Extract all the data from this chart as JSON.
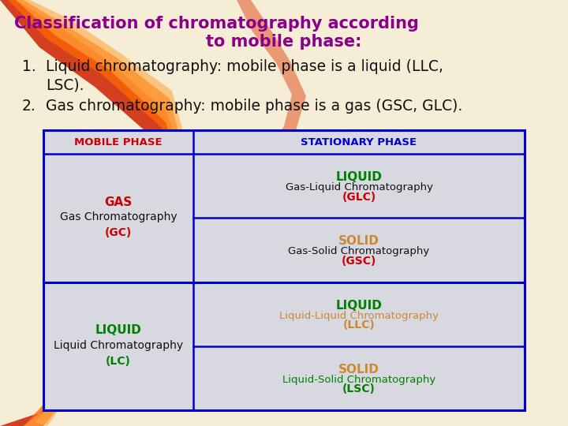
{
  "title_line1": "Classification of chromatography according",
  "title_line2": "to mobile phase:",
  "title_color": "#8B008B",
  "bullet1_line1": "Liquid chromatography: mobile phase is a liquid (LLC,",
  "bullet1_line2": "LSC).",
  "bullet2": "Gas chromatography: mobile phase is a gas (GSC, GLC).",
  "bg_color": "#F5EDD6",
  "table_border_color": "#0000CC",
  "header_text_mobile": "MOBILE PHASE",
  "header_text_stationary": "STATIONARY PHASE",
  "header_text_color_mobile": "#CC0000",
  "header_text_color_stationary": "#0000CC",
  "cell_bg": "#D8D8E0",
  "row1_left_label": "GAS",
  "row1_left_sub1": "Gas Chromatography",
  "row1_left_sub2": "(GC)",
  "row1_right_top_label": "LIQUID",
  "row1_right_top_sub1": "Gas-Liquid Chromatography",
  "row1_right_top_sub2": "(GLC)",
  "row1_right_bot_label": "SOLID",
  "row1_right_bot_sub1": "Gas-Solid Chromatography",
  "row1_right_bot_sub2": "(GSC)",
  "row2_left_label": "LIQUID",
  "row2_left_sub1": "Liquid Chromatography",
  "row2_left_sub2": "(LC)",
  "row2_right_top_label": "LIQUID",
  "row2_right_top_sub1": "Liquid-Liquid Chromatography",
  "row2_right_top_sub2": "(LLC)",
  "row2_right_bot_label": "SOLID",
  "row2_right_bot_sub1": "Liquid-Solid Chromatography",
  "row2_right_bot_sub2": "(LSC)",
  "color_gas": "#CC0000",
  "color_liquid_left": "#008000",
  "color_solid_label": "#CC8833",
  "color_green_bold": "#008000",
  "color_glc": "#CC0000",
  "color_gsc": "#CC0000",
  "color_llc": "#CC8833",
  "color_lsc": "#008000",
  "color_black": "#111111",
  "color_blue": "#0000CC"
}
